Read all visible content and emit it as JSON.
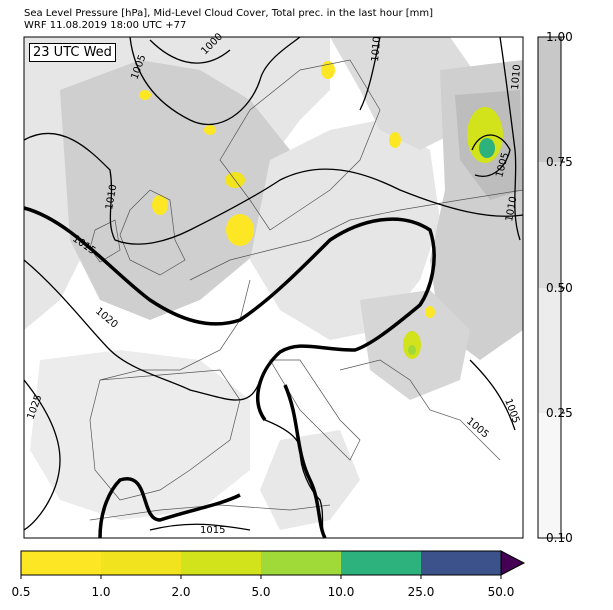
{
  "header": {
    "line1": "Sea Level Pressure [hPa], Mid-Level Cloud Cover, Total prec. in the last hour [mm]",
    "line2": "WRF 11.08.2019 18:00 UTC +77"
  },
  "map": {
    "time_label": "23 UTC Wed",
    "isobar_labels": [
      "1000",
      "1005",
      "1010",
      "1015",
      "1020",
      "1025",
      "1015",
      "1010",
      "1005",
      "1010",
      "1005",
      "1005",
      "1005",
      "1010",
      "1015"
    ],
    "colors": {
      "land_outline": "#444444",
      "isobar": "#000000",
      "cloud_light": "#e6e6e6",
      "cloud_mid": "#cfcfcf",
      "cloud_dark": "#b8b8b8"
    }
  },
  "cloud_colorbar": {
    "ticks": [
      "1.00",
      "0.75",
      "0.50",
      "0.25",
      "0.10"
    ],
    "colors": [
      "#c8c8c8",
      "#dcdcdc",
      "#ececec",
      "#f7f7f7"
    ]
  },
  "precip_colorbar": {
    "ticks": [
      "0.5",
      "1.0",
      "2.0",
      "5.0",
      "10.0",
      "25.0",
      "50.0"
    ],
    "colors": [
      "#fde725",
      "#f1e31e",
      "#d2e21b",
      "#a0da39",
      "#2db27d",
      "#3b528b",
      "#440154"
    ]
  }
}
